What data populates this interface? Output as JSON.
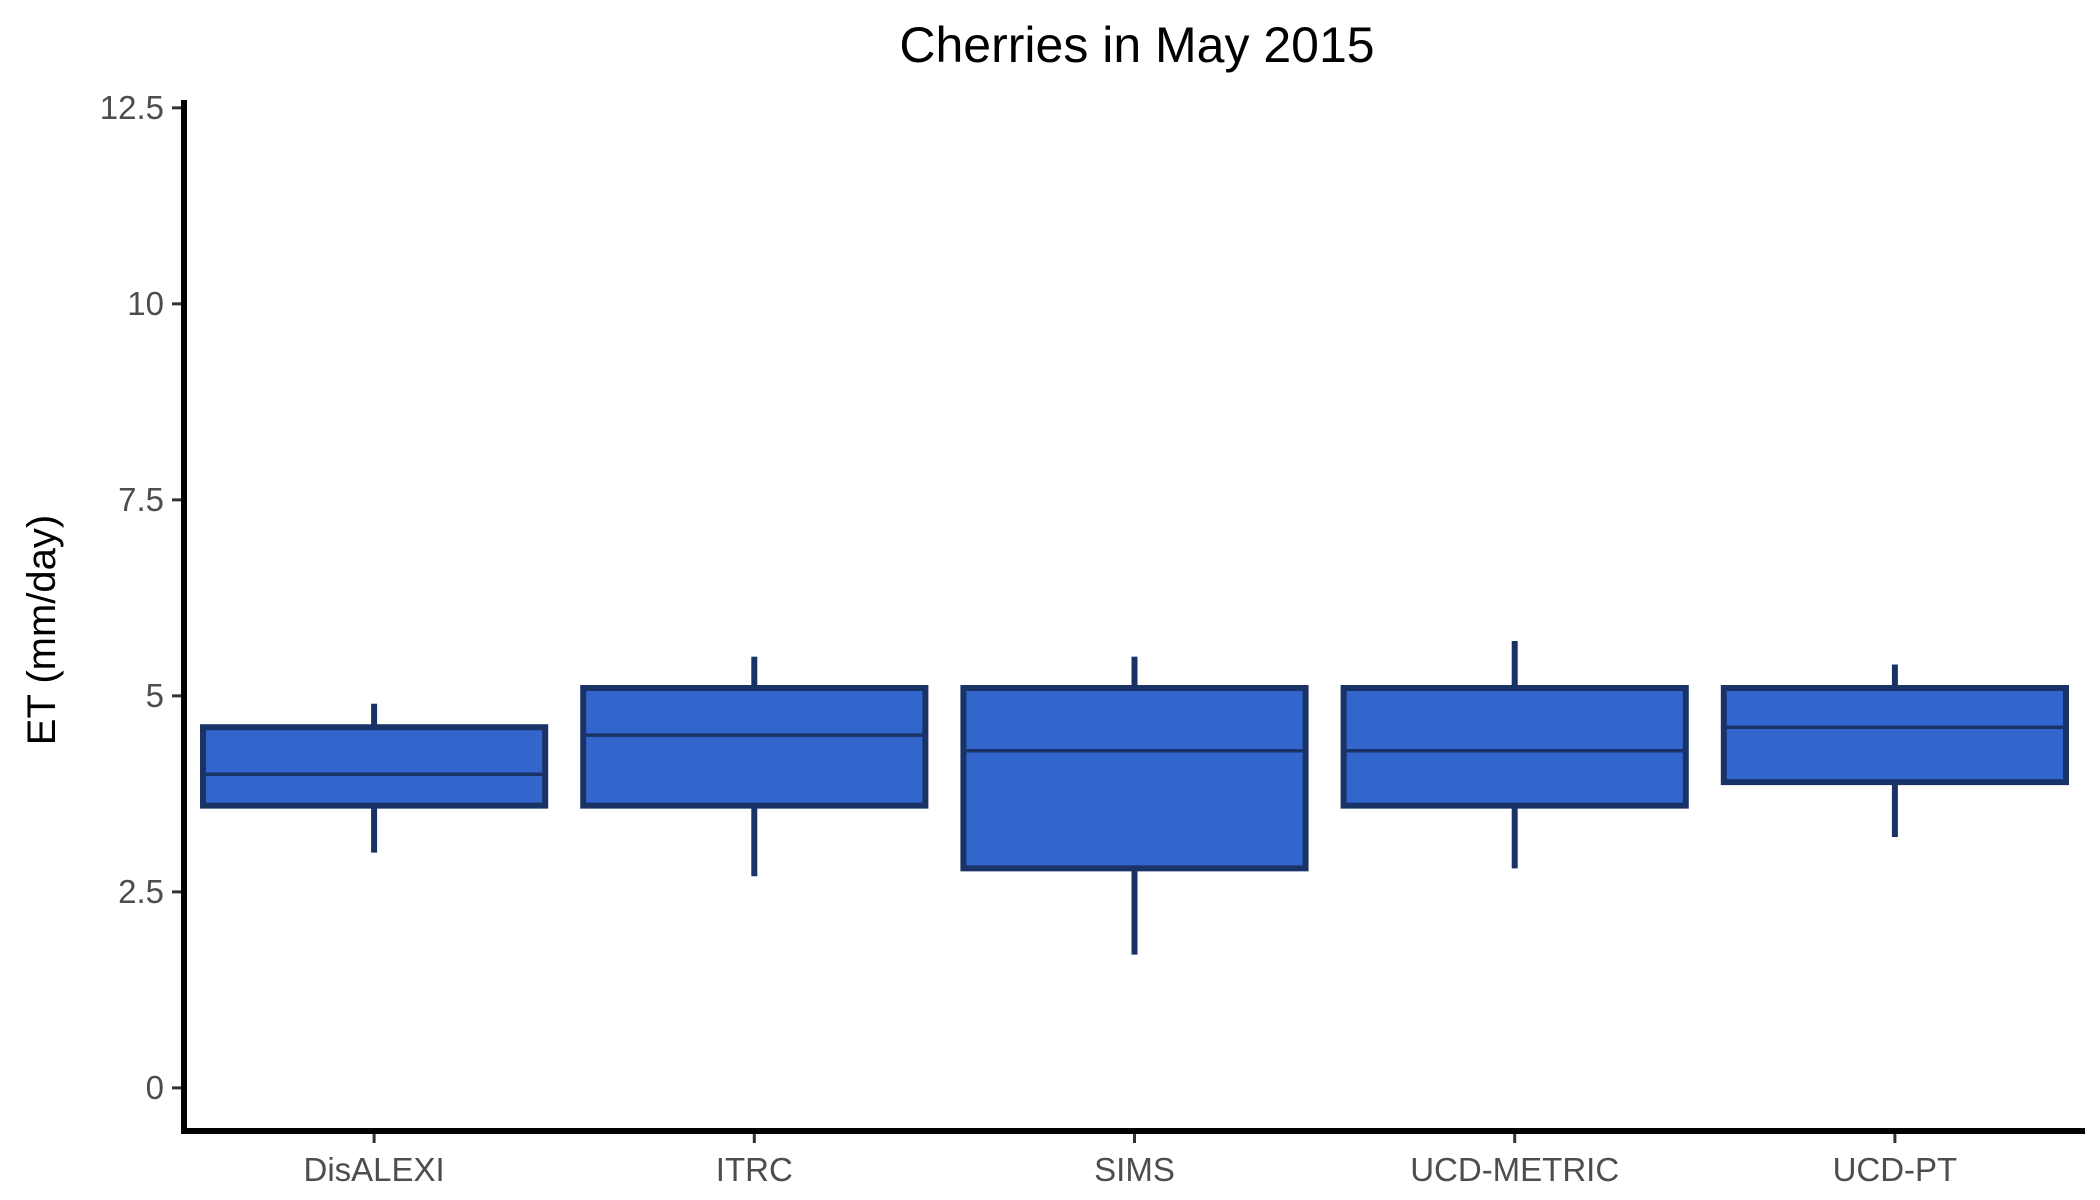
{
  "chart_data": {
    "type": "boxplot",
    "title": "Cherries in May 2015",
    "xlabel": "",
    "ylabel": "ET (mm/day)",
    "ylim": [
      -0.55,
      12.6
    ],
    "yticks": [
      0,
      2.5,
      5,
      7.5,
      10,
      12.5
    ],
    "ytick_labels": [
      "0",
      "2.5",
      "5",
      "7.5",
      "10",
      "12.5"
    ],
    "categories": [
      "DisALEXI",
      "ITRC",
      "SIMS",
      "UCD-METRIC",
      "UCD-PT"
    ],
    "boxes": [
      {
        "category": "DisALEXI",
        "whisker_low": 3.0,
        "q1": 3.6,
        "median": 4.0,
        "q3": 4.6,
        "whisker_high": 4.9
      },
      {
        "category": "ITRC",
        "whisker_low": 2.7,
        "q1": 3.6,
        "median": 4.5,
        "q3": 5.1,
        "whisker_high": 5.5
      },
      {
        "category": "SIMS",
        "whisker_low": 1.7,
        "q1": 2.8,
        "median": 4.3,
        "q3": 5.1,
        "whisker_high": 5.5
      },
      {
        "category": "UCD-METRIC",
        "whisker_low": 2.8,
        "q1": 3.6,
        "median": 4.3,
        "q3": 5.1,
        "whisker_high": 5.7
      },
      {
        "category": "UCD-PT",
        "whisker_low": 3.2,
        "q1": 3.9,
        "median": 4.6,
        "q3": 5.1,
        "whisker_high": 5.4
      }
    ],
    "grid": false,
    "legend": "none",
    "colors": {
      "box_fill": "#3366cc",
      "box_line": "#1a3366",
      "axis": "#000000",
      "tick_label": "#4d4d4d"
    }
  }
}
